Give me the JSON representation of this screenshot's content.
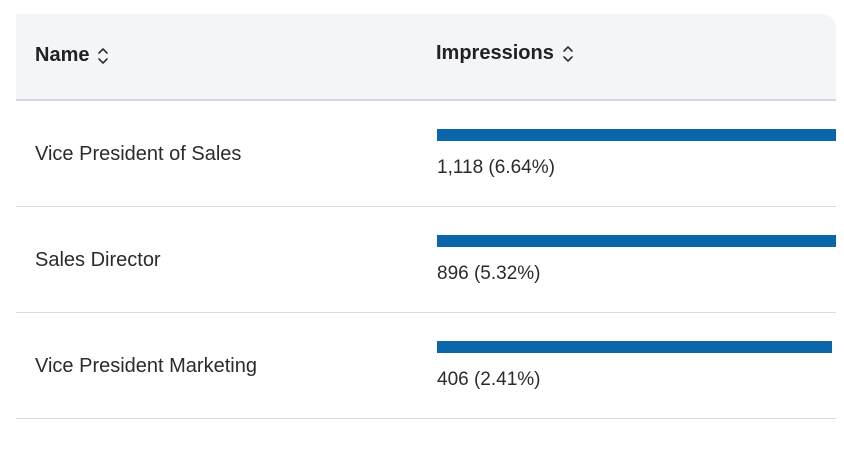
{
  "table": {
    "columns": [
      {
        "label": "Name",
        "sort_icon": "sort-updown-icon"
      },
      {
        "label": "Impressions",
        "sort_icon": "sort-updown-icon"
      }
    ],
    "rows": [
      {
        "name": "Vice President of Sales",
        "value": "1,118 (6.64%)",
        "bar_fraction": 1.0
      },
      {
        "name": "Sales Director",
        "value": "896 (5.32%)",
        "bar_fraction": 1.0
      },
      {
        "name": "Vice President Marketing",
        "value": "406 (2.41%)",
        "bar_fraction": 0.99
      }
    ],
    "colors": {
      "bar": "#0a66a8",
      "header_bg": "#f3f5f8"
    }
  }
}
